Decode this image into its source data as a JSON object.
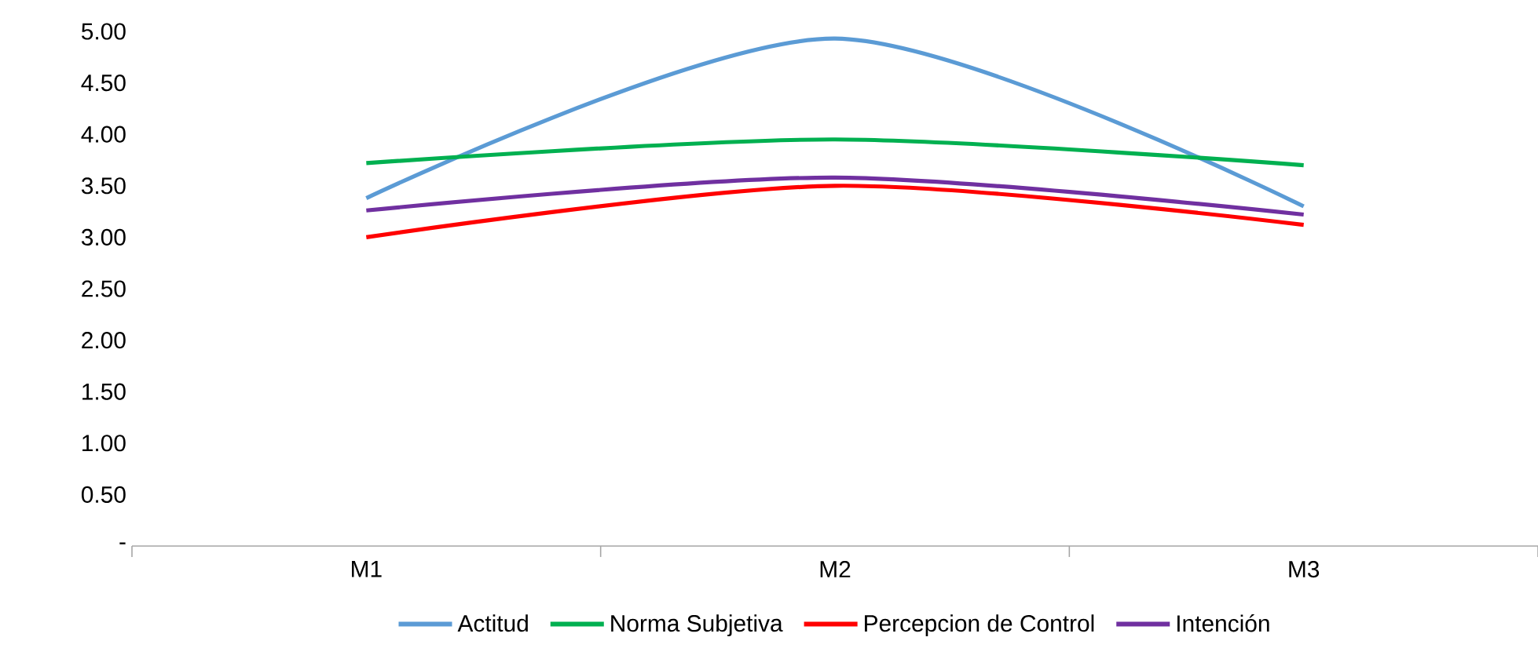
{
  "chart_data": {
    "type": "line",
    "categories": [
      "M1",
      "M2",
      "M3"
    ],
    "series": [
      {
        "name": "Actitud",
        "color": "#5b9bd5",
        "values": [
          3.38,
          4.93,
          3.3
        ]
      },
      {
        "name": "Norma Subjetiva",
        "color": "#00b050",
        "values": [
          3.72,
          3.95,
          3.7
        ]
      },
      {
        "name": "Percepcion de Control",
        "color": "#ff0000",
        "values": [
          3.0,
          3.5,
          3.12
        ]
      },
      {
        "name": "Intención",
        "color": "#7030a0",
        "values": [
          3.26,
          3.58,
          3.22
        ]
      }
    ],
    "ylim": [
      0,
      5
    ],
    "yticks": [
      {
        "value": 0,
        "label": "-"
      },
      {
        "value": 0.5,
        "label": "0.50"
      },
      {
        "value": 1,
        "label": "1.00"
      },
      {
        "value": 1.5,
        "label": "1.50"
      },
      {
        "value": 2,
        "label": "2.00"
      },
      {
        "value": 2.5,
        "label": "2.50"
      },
      {
        "value": 3,
        "label": "3.00"
      },
      {
        "value": 3.5,
        "label": "3.50"
      },
      {
        "value": 4,
        "label": "4.00"
      },
      {
        "value": 4.5,
        "label": "4.50"
      },
      {
        "value": 5,
        "label": "5.00"
      }
    ],
    "grid": false,
    "legend": "bottom",
    "marker": "none",
    "line_style": "solid"
  }
}
